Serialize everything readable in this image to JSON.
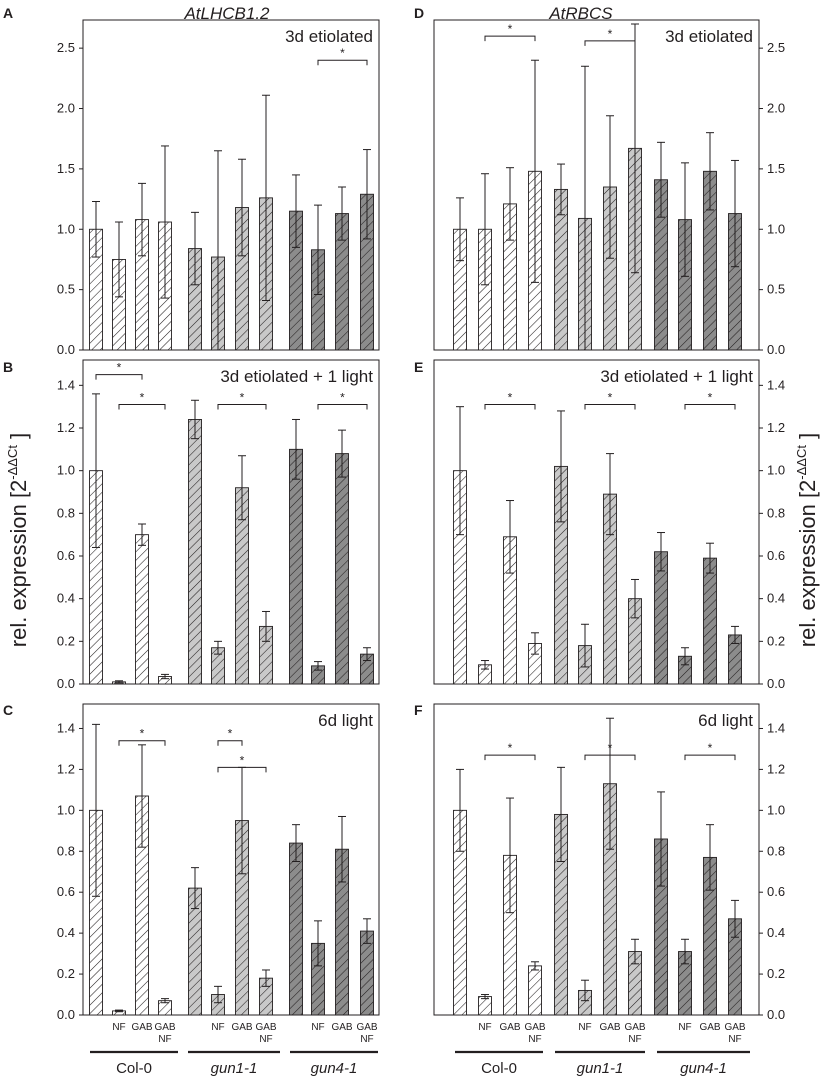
{
  "figure": {
    "gene_left": "AtLHCB1.2",
    "gene_right": "AtRBCS",
    "ylabel_main": "rel. expression [2",
    "ylabel_sup": "-ΔΔCt",
    "ylabel_close": "]",
    "categories": [
      "",
      "NF",
      "GAB",
      "GAB NF",
      "",
      "NF",
      "GAB",
      "GAB NF",
      "",
      "NF",
      "GAB",
      "GAB NF"
    ],
    "groups": [
      "Col-0",
      "gun1-1",
      "gun4-1"
    ],
    "fills": [
      "#ffffff",
      "#c9c9c9",
      "#8c8c8c"
    ]
  },
  "chart_data": [
    {
      "id": "A",
      "type": "bar",
      "title": "3d etiolated",
      "gene": "AtLHCB1.2",
      "ylim": [
        0,
        2.7
      ],
      "yticks": [
        0.0,
        0.5,
        1.0,
        1.5,
        2.0,
        2.5
      ],
      "values": [
        1.0,
        0.75,
        1.08,
        1.06,
        0.84,
        0.77,
        1.18,
        1.26,
        1.15,
        0.83,
        1.13,
        1.29
      ],
      "errors": [
        0.23,
        0.31,
        0.3,
        0.63,
        0.3,
        0.88,
        0.4,
        0.85,
        0.3,
        0.37,
        0.22,
        0.37
      ],
      "sig": [
        {
          "from": 9,
          "to": 11,
          "level": 2.4,
          "label": "*"
        }
      ]
    },
    {
      "id": "D",
      "type": "bar",
      "title": "3d etiolated",
      "gene": "AtRBCS",
      "ylim": [
        0,
        2.7
      ],
      "yticks": [
        0.0,
        0.5,
        1.0,
        1.5,
        2.0,
        2.5
      ],
      "values": [
        1.0,
        1.0,
        1.21,
        1.48,
        1.33,
        1.09,
        1.35,
        1.67,
        1.41,
        1.08,
        1.48,
        1.13
      ],
      "errors": [
        0.26,
        0.46,
        0.3,
        0.92,
        0.21,
        1.26,
        0.59,
        1.03,
        0.31,
        0.47,
        0.32,
        0.44
      ],
      "sig": [
        {
          "from": 1,
          "to": 3,
          "level": 2.6,
          "label": "*"
        },
        {
          "from": 5,
          "to": 7,
          "level": 2.56,
          "label": "*"
        }
      ]
    },
    {
      "id": "B",
      "type": "bar",
      "title": "3d etiolated + 1 light",
      "gene": "AtLHCB1.2",
      "ylim": [
        0,
        1.5
      ],
      "yticks": [
        0.0,
        0.2,
        0.4,
        0.6,
        0.8,
        1.0,
        1.2,
        1.4
      ],
      "values": [
        1.0,
        0.01,
        0.7,
        0.035,
        1.24,
        0.17,
        0.92,
        0.27,
        1.1,
        0.085,
        1.08,
        0.14
      ],
      "errors": [
        0.36,
        0.005,
        0.05,
        0.01,
        0.09,
        0.03,
        0.15,
        0.07,
        0.14,
        0.02,
        0.11,
        0.03
      ],
      "sig": [
        {
          "from": 0,
          "to": 2,
          "level": 1.45,
          "label": "*"
        },
        {
          "from": 1,
          "to": 3,
          "level": 1.31,
          "label": "*"
        },
        {
          "from": 5,
          "to": 7,
          "level": 1.31,
          "label": "*"
        },
        {
          "from": 9,
          "to": 11,
          "level": 1.31,
          "label": "*"
        }
      ]
    },
    {
      "id": "E",
      "type": "bar",
      "title": "3d etiolated + 1 light",
      "gene": "AtRBCS",
      "ylim": [
        0,
        1.5
      ],
      "yticks": [
        0.0,
        0.2,
        0.4,
        0.6,
        0.8,
        1.0,
        1.2,
        1.4
      ],
      "values": [
        1.0,
        0.09,
        0.69,
        0.19,
        1.02,
        0.18,
        0.89,
        0.4,
        0.62,
        0.13,
        0.59,
        0.23
      ],
      "errors": [
        0.3,
        0.02,
        0.17,
        0.05,
        0.26,
        0.1,
        0.19,
        0.09,
        0.09,
        0.04,
        0.07,
        0.04
      ],
      "sig": [
        {
          "from": 1,
          "to": 3,
          "level": 1.31,
          "label": "*"
        },
        {
          "from": 5,
          "to": 7,
          "level": 1.31,
          "label": "*"
        },
        {
          "from": 9,
          "to": 11,
          "level": 1.31,
          "label": "*"
        }
      ]
    },
    {
      "id": "C",
      "type": "bar",
      "title": "6d light",
      "gene": "AtLHCB1.2",
      "ylim": [
        0,
        1.5
      ],
      "yticks": [
        0.0,
        0.2,
        0.4,
        0.6,
        0.8,
        1.0,
        1.2,
        1.4
      ],
      "values": [
        1.0,
        0.02,
        1.07,
        0.07,
        0.62,
        0.1,
        0.95,
        0.18,
        0.84,
        0.35,
        0.81,
        0.41
      ],
      "errors": [
        0.42,
        0.004,
        0.25,
        0.01,
        0.1,
        0.04,
        0.26,
        0.04,
        0.09,
        0.11,
        0.16,
        0.06
      ],
      "sig": [
        {
          "from": 1,
          "to": 3,
          "level": 1.34,
          "label": "*"
        },
        {
          "from": 5,
          "to": 6,
          "level": 1.34,
          "label": "*"
        },
        {
          "from": 5,
          "to": 7,
          "level": 1.21,
          "label": "*"
        }
      ]
    },
    {
      "id": "F",
      "type": "bar",
      "title": "6d light",
      "gene": "AtRBCS",
      "ylim": [
        0,
        1.5
      ],
      "yticks": [
        0.0,
        0.2,
        0.4,
        0.6,
        0.8,
        1.0,
        1.2,
        1.4
      ],
      "values": [
        1.0,
        0.09,
        0.78,
        0.24,
        0.98,
        0.12,
        1.13,
        0.31,
        0.86,
        0.31,
        0.77,
        0.47
      ],
      "errors": [
        0.2,
        0.01,
        0.28,
        0.02,
        0.23,
        0.05,
        0.32,
        0.06,
        0.23,
        0.06,
        0.16,
        0.09
      ],
      "sig": [
        {
          "from": 1,
          "to": 3,
          "level": 1.27,
          "label": "*"
        },
        {
          "from": 5,
          "to": 7,
          "level": 1.27,
          "label": "*"
        },
        {
          "from": 9,
          "to": 11,
          "level": 1.27,
          "label": "*"
        }
      ]
    }
  ]
}
